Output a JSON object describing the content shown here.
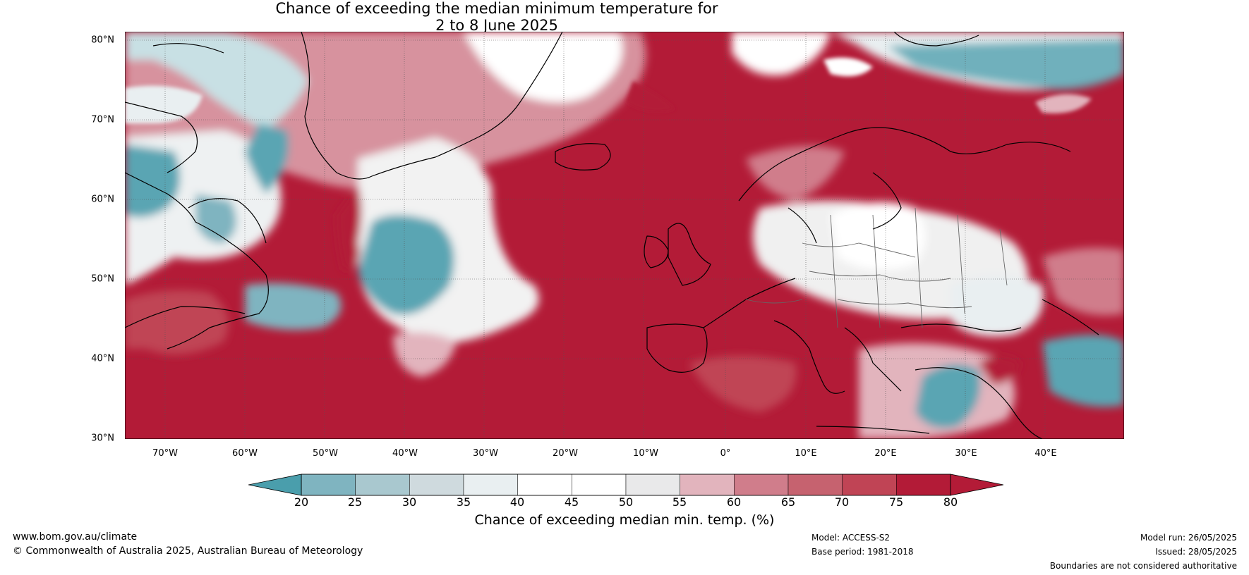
{
  "title": {
    "line1": "Chance of exceeding the median minimum temperature for",
    "line2": "2 to 8 June 2025"
  },
  "axes": {
    "lat_labels": [
      "80°N",
      "70°N",
      "60°N",
      "50°N",
      "40°N",
      "30°N"
    ],
    "lon_labels": [
      "70°W",
      "60°W",
      "50°W",
      "40°W",
      "30°W",
      "20°W",
      "10°W",
      "0°",
      "10°E",
      "20°E",
      "30°E",
      "40°E"
    ]
  },
  "colorbar": {
    "ticks": [
      "20",
      "25",
      "30",
      "35",
      "40",
      "45",
      "50",
      "55",
      "60",
      "65",
      "70",
      "75",
      "80"
    ],
    "colors": [
      "#5aa5b3",
      "#7fb4c0",
      "#a9c8cf",
      "#cfdade",
      "#e9eff1",
      "#ffffff",
      "#ffffff",
      "#e9e9ea",
      "#e2b4bd",
      "#d07d8b",
      "#c6626f",
      "#c04455",
      "#b31b37"
    ],
    "label": "Chance of exceeding median min. temp. (%)"
  },
  "footer": {
    "url": "www.bom.gov.au/climate",
    "copyright": "© Commonwealth of Australia 2025, Australian Bureau of Meteorology",
    "model": "Model: ACCESS-S2",
    "base_period": "Base period: 1981-2018",
    "model_run": "Model run: 26/05/2025",
    "issued": "Issued: 28/05/2025",
    "disclaimer": "Boundaries are not considered authoritative"
  }
}
